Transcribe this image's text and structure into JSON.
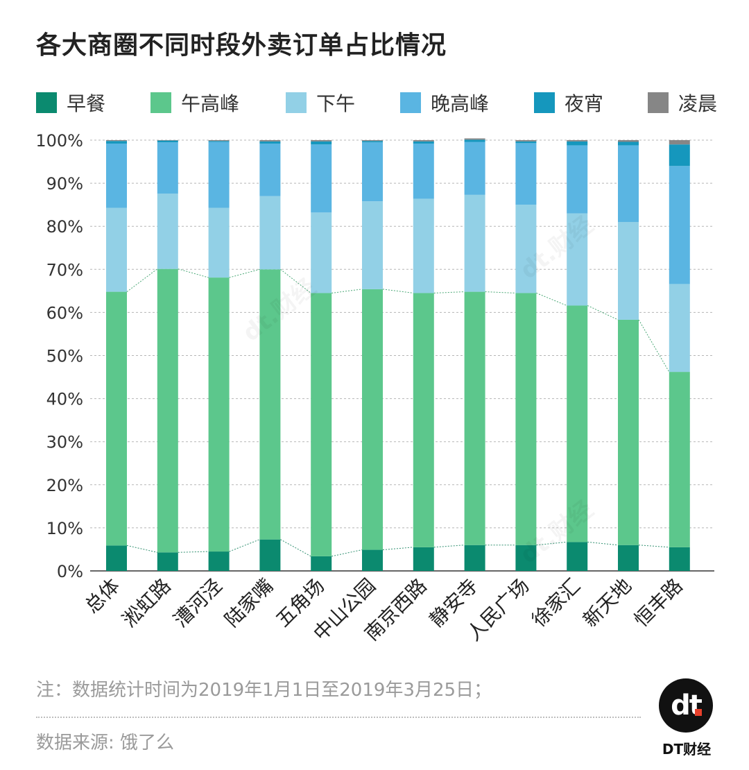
{
  "title": "各大商圈不同时段外卖订单占比情况",
  "legend": [
    {
      "label": "早餐",
      "color": "#0b8a6f"
    },
    {
      "label": "午高峰",
      "color": "#5cc78c"
    },
    {
      "label": "下午",
      "color": "#92d0e6"
    },
    {
      "label": "晚高峰",
      "color": "#5ab5e2"
    },
    {
      "label": "夜宵",
      "color": "#1597bd"
    },
    {
      "label": "凌晨",
      "color": "#868686"
    }
  ],
  "chart_data": {
    "type": "bar",
    "stacked": true,
    "categories": [
      "总体",
      "淞虹路",
      "漕河泾",
      "陆家嘴",
      "五角场",
      "中山公园",
      "南京西路",
      "静安寺",
      "人民广场",
      "徐家汇",
      "新天地",
      "恒丰路"
    ],
    "ylim": [
      0,
      100
    ],
    "yticks": [
      "0%",
      "10%",
      "20%",
      "30%",
      "40%",
      "50%",
      "60%",
      "70%",
      "80%",
      "90%",
      "100%"
    ],
    "grid": true,
    "legend_position": "top",
    "series": [
      {
        "name": "早餐",
        "color": "#0b8a6f",
        "values": [
          5.9,
          4.3,
          4.5,
          7.3,
          3.4,
          4.9,
          5.5,
          6.0,
          6.0,
          6.7,
          6.0,
          5.5
        ]
      },
      {
        "name": "午高峰",
        "color": "#5cc78c",
        "values": [
          58.9,
          65.8,
          63.6,
          62.7,
          61.1,
          60.5,
          59.0,
          58.8,
          58.5,
          54.9,
          52.3,
          40.7
        ]
      },
      {
        "name": "下午",
        "color": "#92d0e6",
        "values": [
          19.5,
          17.5,
          16.2,
          17.0,
          18.7,
          20.4,
          21.9,
          22.5,
          20.5,
          21.4,
          22.7,
          20.4
        ]
      },
      {
        "name": "晚高峰",
        "color": "#5ab5e2",
        "values": [
          14.9,
          11.9,
          15.3,
          12.2,
          15.8,
          13.7,
          12.8,
          12.3,
          14.3,
          15.8,
          17.8,
          27.4
        ]
      },
      {
        "name": "夜宵",
        "color": "#1597bd",
        "values": [
          0.6,
          0.4,
          0.2,
          0.5,
          0.7,
          0.3,
          0.5,
          0.5,
          0.4,
          0.9,
          0.8,
          5.0
        ]
      },
      {
        "name": "凌晨",
        "color": "#868686",
        "values": [
          0.2,
          0.1,
          0.2,
          0.3,
          0.3,
          0.2,
          0.3,
          0.3,
          0.3,
          0.3,
          0.4,
          1.0
        ]
      }
    ]
  },
  "note": "注：数据统计时间为2019年1月1日至2019年3月25日；",
  "source": "数据来源: 饿了么",
  "brand": "DT财经",
  "logo_text": "dt"
}
